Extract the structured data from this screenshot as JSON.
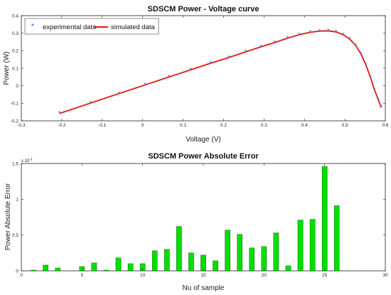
{
  "chart_data": [
    {
      "type": "line",
      "title": "SDSCM Power - Voltage curve",
      "xlabel": "Voltage (V)",
      "ylabel": "Power   (W)",
      "xlim": [
        -0.3,
        0.6
      ],
      "ylim": [
        -0.2,
        0.4
      ],
      "xticks": [
        -0.3,
        -0.2,
        -0.1,
        0,
        0.1,
        0.2,
        0.3,
        0.4,
        0.5,
        0.6
      ],
      "xtick_labels": [
        "-0.3",
        "-0.2",
        "-0.1",
        "0",
        "0.1",
        "0.2",
        "0.3",
        "0.4",
        "0.5",
        "0.6"
      ],
      "yticks": [
        -0.2,
        -0.1,
        0,
        0.1,
        0.2,
        0.3,
        0.4
      ],
      "ytick_labels": [
        "-0.2",
        "-0.1",
        "0",
        "0.1",
        "0.2",
        "0.3",
        "0.4"
      ],
      "legend_position": "top-left",
      "series": [
        {
          "name": "experimental data",
          "style": "markers",
          "color": "#3a7fd5",
          "x": [
            -0.2057,
            -0.1291,
            -0.0588,
            0.0057,
            0.0646,
            0.1185,
            0.1678,
            0.2132,
            0.2545,
            0.2924,
            0.3269,
            0.3585,
            0.3873,
            0.4137,
            0.4373,
            0.459,
            0.4784,
            0.496,
            0.5119,
            0.5265,
            0.5398,
            0.5521,
            0.5633,
            0.5736,
            0.5833,
            0.59
          ],
          "y": [
            -0.1579,
            -0.0989,
            -0.0446,
            0.0044,
            0.0497,
            0.091,
            0.1282,
            0.1614,
            0.1931,
            0.2222,
            0.2471,
            0.2718,
            0.2915,
            0.3047,
            0.3119,
            0.3131,
            0.307,
            0.2915,
            0.2667,
            0.2306,
            0.1816,
            0.1188,
            0.0473,
            -0.0258,
            -0.083,
            -0.124
          ]
        },
        {
          "name": "simulated data",
          "style": "line",
          "color": "#e8150f",
          "x": [
            -0.2057,
            -0.1291,
            -0.0588,
            0.0057,
            0.0646,
            0.1185,
            0.1678,
            0.2132,
            0.2545,
            0.2924,
            0.3269,
            0.3585,
            0.3873,
            0.4137,
            0.4373,
            0.459,
            0.4784,
            0.496,
            0.5119,
            0.5265,
            0.5398,
            0.5521,
            0.5633,
            0.5736,
            0.5833,
            0.59
          ],
          "y": [
            -0.1579,
            -0.0989,
            -0.0446,
            0.0044,
            0.0497,
            0.091,
            0.1282,
            0.1614,
            0.1931,
            0.2222,
            0.2471,
            0.2718,
            0.2915,
            0.3047,
            0.3119,
            0.3131,
            0.307,
            0.2915,
            0.2667,
            0.2306,
            0.1816,
            0.1188,
            0.0473,
            -0.0258,
            -0.083,
            -0.124
          ]
        }
      ]
    },
    {
      "type": "bar",
      "title": "SDSCM Power Absolute Error",
      "xlabel": "Nu of sample",
      "ylabel": "Power Absolute Error",
      "scale_label": "x 10",
      "scale_exponent": "-3",
      "xlim": [
        0,
        30
      ],
      "ylim": [
        0,
        1.5
      ],
      "xticks": [
        0,
        5,
        10,
        15,
        20,
        25,
        30
      ],
      "xtick_labels": [
        "0",
        "5",
        "10",
        "15",
        "20",
        "25",
        "30"
      ],
      "yticks": [
        0,
        0.5,
        1,
        1.5
      ],
      "ytick_labels": [
        "0",
        "0.5",
        "1",
        "1.5"
      ],
      "bar_color": "#00e000",
      "categories": [
        1,
        2,
        3,
        4,
        5,
        6,
        7,
        8,
        9,
        10,
        11,
        12,
        13,
        14,
        15,
        16,
        17,
        18,
        19,
        20,
        21,
        22,
        23,
        24,
        25,
        26
      ],
      "values": [
        0.01,
        0.08,
        0.04,
        0,
        0.06,
        0.11,
        0.01,
        0.18,
        0.1,
        0.1,
        0.28,
        0.3,
        0.62,
        0.25,
        0.22,
        0.14,
        0.57,
        0.51,
        0.32,
        0.34,
        0.53,
        0.07,
        0.71,
        0.72,
        1.46,
        0.91
      ]
    }
  ]
}
